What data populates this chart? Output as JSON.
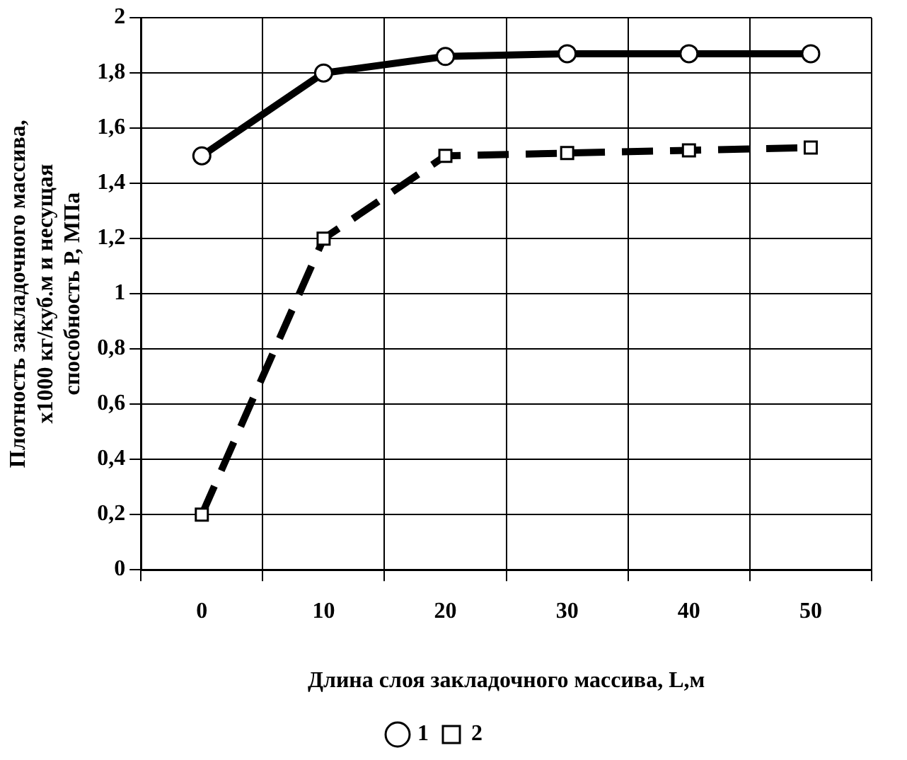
{
  "chart_data": {
    "type": "line",
    "xlabel": "Длина слоя закладочного массива, L,м",
    "ylabel": "Плотность закладочного массива,\nх1000 кг/куб.м и несущая\nспособность Р, МПа",
    "categories": [
      "0",
      "10",
      "20",
      "30",
      "40",
      "50"
    ],
    "series": [
      {
        "name": "1",
        "color": "#000000",
        "values": [
          1.5,
          1.8,
          1.86,
          1.87,
          1.87,
          1.87
        ],
        "marker": "circle",
        "line_style": "solid"
      },
      {
        "name": "2",
        "color": "#000000",
        "values": [
          0.2,
          1.2,
          1.5,
          1.51,
          1.52,
          1.53
        ],
        "marker": "square",
        "line_style": "dashed"
      }
    ],
    "ylim": [
      0,
      2
    ],
    "yticks": [
      0,
      {
        "value": 0.2,
        "label": "0,2"
      },
      {
        "value": 0.4,
        "label": "0,4"
      },
      {
        "value": 0.6,
        "label": "0,6"
      },
      {
        "value": 0.8,
        "label": "0,8"
      },
      1,
      {
        "value": 1.2,
        "label": "1,2"
      },
      {
        "value": 1.4,
        "label": "1,4"
      },
      {
        "value": 1.6,
        "label": "1,6"
      },
      {
        "value": 1.8,
        "label": "1,8"
      },
      2
    ],
    "grid": true,
    "legend": "bottom"
  }
}
